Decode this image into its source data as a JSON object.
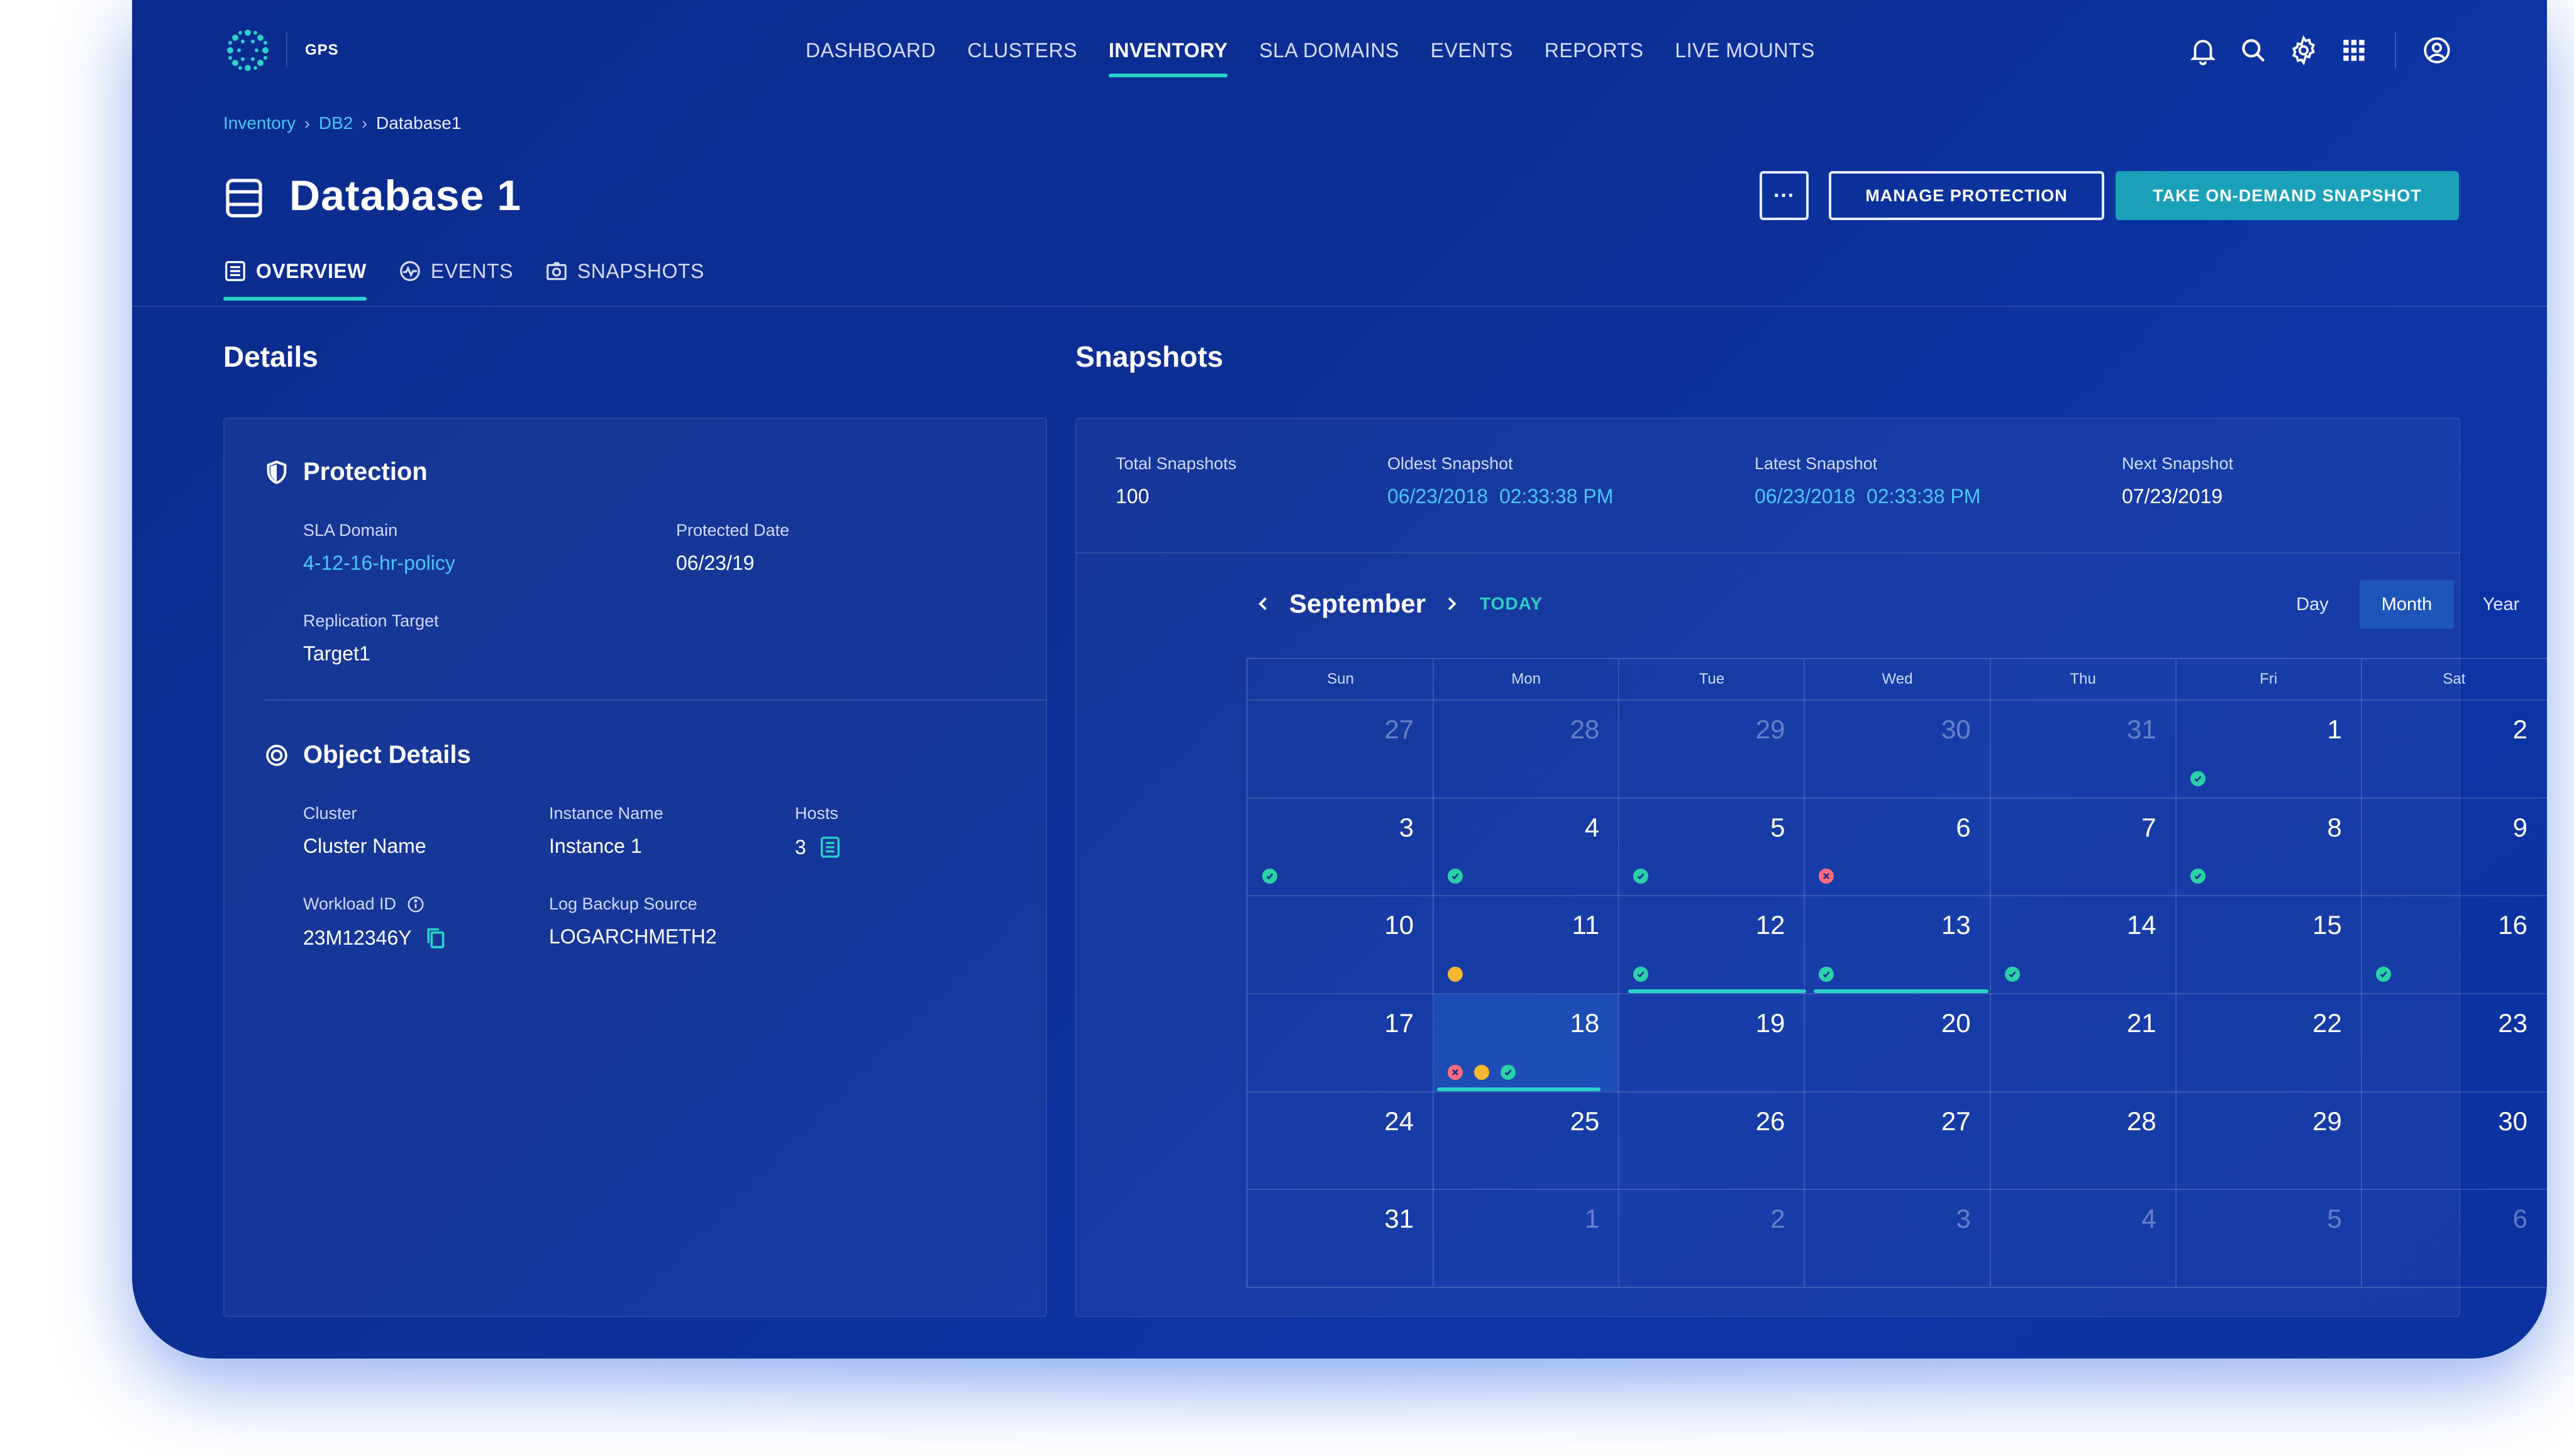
{
  "header": {
    "app_name": "GPS",
    "nav": [
      "DASHBOARD",
      "CLUSTERS",
      "INVENTORY",
      "SLA DOMAINS",
      "EVENTS",
      "REPORTS",
      "LIVE MOUNTS"
    ],
    "active_nav": "INVENTORY",
    "icons": [
      "bell-icon",
      "search-icon",
      "gear-icon",
      "apps-grid-icon",
      "user-icon"
    ]
  },
  "breadcrumb": {
    "items": [
      "Inventory",
      "DB2",
      "Database1"
    ]
  },
  "page": {
    "title": "Database 1"
  },
  "actions": {
    "more": "···",
    "manage": "MANAGE PROTECTION",
    "snapshot": "TAKE ON-DEMAND SNAPSHOT"
  },
  "tabs": [
    {
      "label": "OVERVIEW"
    },
    {
      "label": "EVENTS"
    },
    {
      "label": "SNAPSHOTS"
    }
  ],
  "details": {
    "heading": "Details",
    "protection": {
      "title": "Protection",
      "sla_label": "SLA Domain",
      "sla_value": "4-12-16-hr-policy",
      "date_label": "Protected Date",
      "date_value": "06/23/19",
      "rep_label": "Replication Target",
      "rep_value": "Target1"
    },
    "object": {
      "title": "Object Details",
      "cluster_label": "Cluster",
      "cluster_value": "Cluster Name",
      "instance_label": "Instance Name",
      "instance_value": "Instance 1",
      "hosts_label": "Hosts",
      "hosts_value": "3",
      "workload_label": "Workload ID",
      "workload_value": "23M12346Y",
      "log_label": "Log Backup Source",
      "log_value": "LOGARCHMETH2"
    }
  },
  "snapshots": {
    "heading": "Snapshots",
    "total_label": "Total Snapshots",
    "total_value": "100",
    "oldest_label": "Oldest Snapshot",
    "oldest_value": "06/23/2018  02:33:38 PM",
    "latest_label": "Latest Snapshot",
    "latest_value": "06/23/2018  02:33:38 PM",
    "next_label": "Next Snapshot",
    "next_value": "07/23/2019"
  },
  "calendar": {
    "month": "September",
    "today": "TODAY",
    "views": [
      "Day",
      "Month",
      "Year"
    ],
    "active_view": "Month",
    "weekdays": [
      "Sun",
      "Mon",
      "Tue",
      "Wed",
      "Thu",
      "Fri",
      "Sat"
    ],
    "selected_day": 18,
    "weeks": [
      [
        {
          "d": "27",
          "out": true
        },
        {
          "d": "28",
          "out": true
        },
        {
          "d": "29",
          "out": true
        },
        {
          "d": "30",
          "out": true
        },
        {
          "d": "31",
          "out": true
        },
        {
          "d": "1",
          "s": [
            "ok"
          ]
        },
        {
          "d": "2"
        }
      ],
      [
        {
          "d": "3",
          "s": [
            "ok"
          ]
        },
        {
          "d": "4",
          "s": [
            "ok"
          ]
        },
        {
          "d": "5",
          "s": [
            "ok"
          ]
        },
        {
          "d": "6",
          "s": [
            "err"
          ]
        },
        {
          "d": "7"
        },
        {
          "d": "8",
          "s": [
            "ok"
          ]
        },
        {
          "d": "9"
        }
      ],
      [
        {
          "d": "10"
        },
        {
          "d": "11",
          "s": [
            "warn"
          ]
        },
        {
          "d": "12",
          "s": [
            "ok"
          ]
        },
        {
          "d": "13",
          "s": [
            "ok"
          ]
        },
        {
          "d": "14",
          "s": [
            "ok"
          ]
        },
        {
          "d": "15"
        },
        {
          "d": "16",
          "s": [
            "ok"
          ]
        }
      ],
      [
        {
          "d": "17"
        },
        {
          "d": "18",
          "s": [
            "err",
            "warn",
            "ok"
          ],
          "sel": true
        },
        {
          "d": "19"
        },
        {
          "d": "20"
        },
        {
          "d": "21"
        },
        {
          "d": "22"
        },
        {
          "d": "23"
        }
      ],
      [
        {
          "d": "24"
        },
        {
          "d": "25"
        },
        {
          "d": "26"
        },
        {
          "d": "27"
        },
        {
          "d": "28"
        },
        {
          "d": "29"
        },
        {
          "d": "30"
        }
      ],
      [
        {
          "d": "31"
        },
        {
          "d": "1",
          "out": true
        },
        {
          "d": "2",
          "out": true
        },
        {
          "d": "3",
          "out": true
        },
        {
          "d": "4",
          "out": true
        },
        {
          "d": "5",
          "out": true
        },
        {
          "d": "6",
          "out": true
        }
      ]
    ]
  },
  "colors": {
    "accent": "#2ad1c9",
    "link": "#49c6f5",
    "ok": "#2bd1a7",
    "error": "#ff6b7d",
    "warning": "#f6b731",
    "primary_button": "#1aa0b8"
  }
}
